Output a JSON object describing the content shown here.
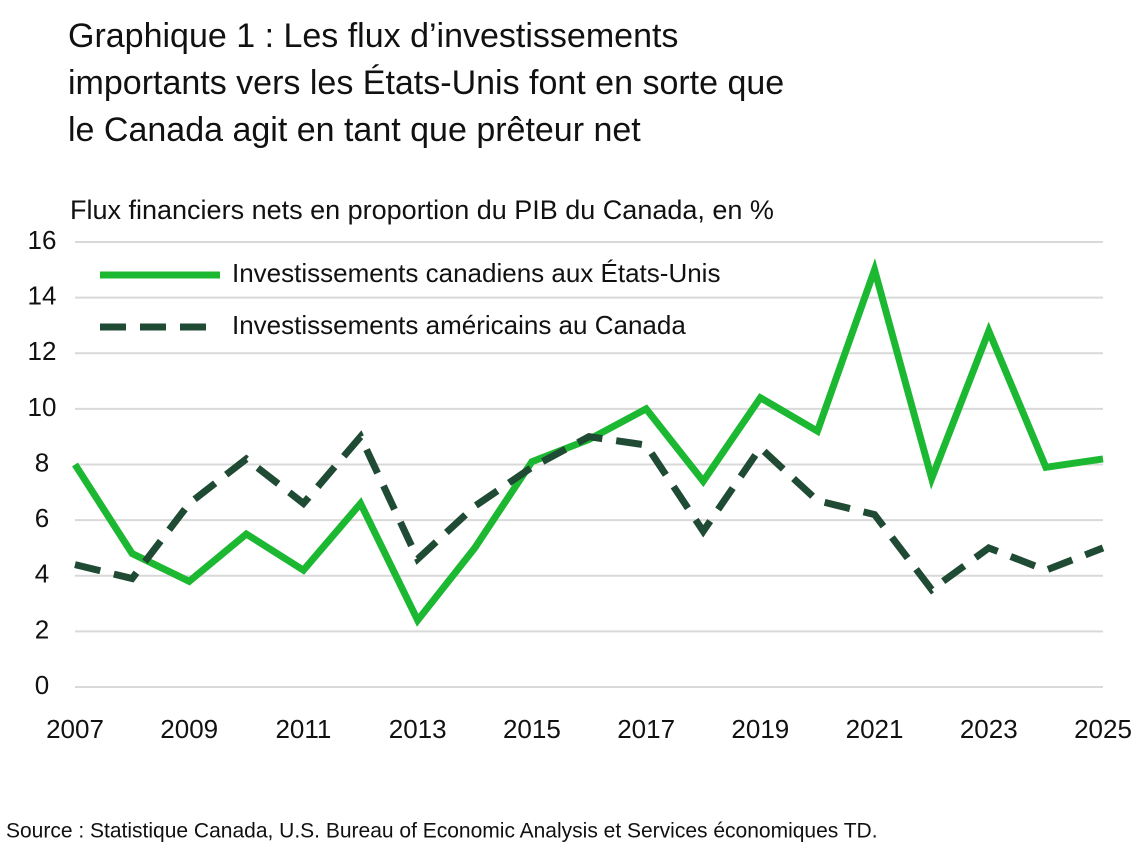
{
  "chart_data": {
    "type": "line",
    "title": [
      "Graphique 1 : Les flux d’investissements",
      "importants vers les États-Unis font en sorte que",
      "le Canada agit en tant que prêteur net"
    ],
    "subtitle": "Flux financiers nets en proportion du PIB du Canada, en %",
    "source": "Source : Statistique Canada, U.S. Bureau of Economic Analysis et Services économiques TD.",
    "x": [
      2007,
      2008,
      2009,
      2010,
      2011,
      2012,
      2013,
      2014,
      2015,
      2016,
      2017,
      2018,
      2019,
      2020,
      2021,
      2022,
      2023,
      2024,
      2025
    ],
    "xlim": [
      2007,
      2025
    ],
    "xticks": [
      2007,
      2009,
      2011,
      2013,
      2015,
      2017,
      2019,
      2021,
      2023,
      2025
    ],
    "ylim": [
      0,
      16
    ],
    "yticks": [
      0,
      2,
      4,
      6,
      8,
      10,
      12,
      14,
      16
    ],
    "grid": true,
    "legend": "upper-left",
    "series": [
      {
        "name": "Investissements canadiens aux États-Unis",
        "color": "#1db832",
        "dash": false,
        "values": [
          8.0,
          4.8,
          3.8,
          5.5,
          4.2,
          6.6,
          2.4,
          5.0,
          8.1,
          8.9,
          10.0,
          7.4,
          10.4,
          9.2,
          15.0,
          7.5,
          12.8,
          7.9,
          8.2
        ]
      },
      {
        "name": "Investissements américains au Canada",
        "color": "#1f4a33",
        "dash": true,
        "values": [
          4.4,
          3.9,
          6.6,
          8.2,
          6.6,
          9.0,
          4.6,
          6.5,
          7.9,
          9.0,
          8.7,
          5.6,
          8.6,
          6.7,
          6.2,
          3.5,
          5.0,
          4.2,
          5.0
        ]
      }
    ]
  }
}
